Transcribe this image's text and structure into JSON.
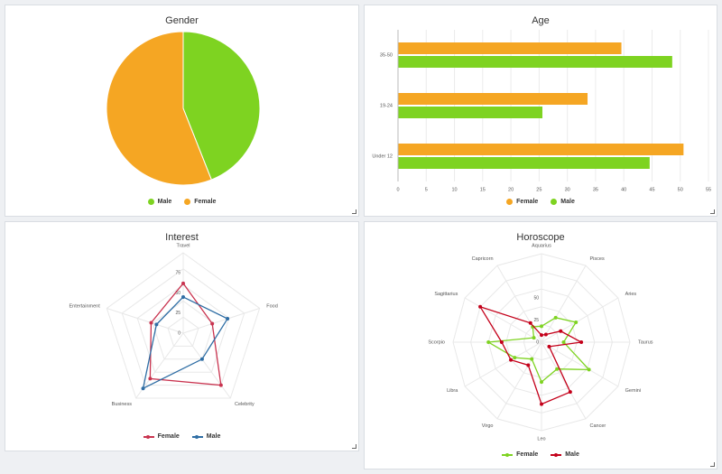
{
  "colors": {
    "male": "#7ed321",
    "female": "#f5a623",
    "female_line": "#c9334f",
    "male_line": "#2e6da4",
    "horo_male": "#c4001a",
    "horo_female": "#7ed321"
  },
  "panels": {
    "gender": {
      "title": "Gender"
    },
    "age": {
      "title": "Age"
    },
    "interest": {
      "title": "Interest"
    },
    "horoscope": {
      "title": "Horoscope"
    }
  },
  "chart_data": [
    {
      "id": "gender",
      "type": "pie",
      "title": "Gender",
      "slices": [
        {
          "name": "Male",
          "value": 44,
          "color": "#7ed321"
        },
        {
          "name": "Female",
          "value": 56,
          "color": "#f5a623"
        }
      ],
      "legend": [
        "Male",
        "Female"
      ],
      "legend_position": "bottom"
    },
    {
      "id": "age",
      "type": "bar",
      "orientation": "horizontal",
      "title": "Age",
      "categories": [
        "35-50",
        "19-24",
        "Under 12"
      ],
      "series": [
        {
          "name": "Female",
          "color": "#f5a623",
          "values": [
            39.5,
            33.5,
            50.5
          ]
        },
        {
          "name": "Male",
          "color": "#7ed321",
          "values": [
            48.5,
            25.5,
            44.5
          ]
        }
      ],
      "xlim": [
        0,
        55
      ],
      "xticks": [
        "0",
        "5",
        "10",
        "15",
        "20",
        "25",
        "30",
        "35",
        "40",
        "45",
        "50",
        "55"
      ],
      "grid": true,
      "legend_position": "bottom"
    },
    {
      "id": "interest",
      "type": "radar",
      "title": "Interest",
      "axes": [
        "Travel",
        "Food",
        "Celebrity",
        "Business",
        "Entertainment"
      ],
      "rlim": [
        0,
        100
      ],
      "rticks": [
        "0",
        "25",
        "50",
        "75"
      ],
      "series": [
        {
          "name": "Female",
          "color": "#c9334f",
          "values": [
            62,
            38,
            80,
            70,
            42
          ]
        },
        {
          "name": "Male",
          "color": "#2e6da4",
          "values": [
            45,
            58,
            40,
            85,
            35
          ]
        }
      ],
      "legend_position": "bottom"
    },
    {
      "id": "horoscope",
      "type": "radar",
      "title": "Horoscope",
      "axes": [
        "Aquarius",
        "Pisces",
        "Aries",
        "Taurus",
        "Gemini",
        "Cancer",
        "Leo",
        "Virgo",
        "Libra",
        "Scorpio",
        "Sagittarius",
        "Capricorn"
      ],
      "rlim": [
        0,
        100
      ],
      "rticks": [
        "0",
        "25",
        "50"
      ],
      "series": [
        {
          "name": "Female",
          "color": "#7ed321",
          "values": [
            18,
            32,
            45,
            25,
            62,
            35,
            45,
            22,
            35,
            60,
            10,
            20
          ]
        },
        {
          "name": "Male",
          "color": "#c4001a",
          "values": [
            8,
            10,
            25,
            45,
            10,
            65,
            70,
            30,
            40,
            45,
            80,
            25
          ]
        }
      ],
      "legend_position": "bottom"
    }
  ]
}
